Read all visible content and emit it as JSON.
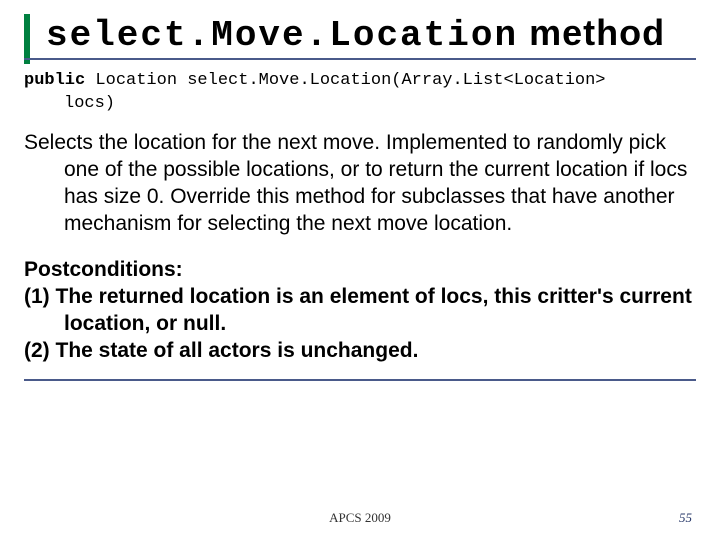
{
  "title": {
    "mono": "select.Move.Location",
    "tail": " method"
  },
  "signature": {
    "keyword": "public",
    "rest": " Location select.Move.Location(Array.List<Location>",
    "line2": "locs)"
  },
  "description": "Selects the location for the next move. Implemented to randomly pick one of the possible locations, or to return the current location if locs has size 0. Override this method for subclasses that have another mechanism for selecting the next move location.",
  "postconditions": {
    "heading": "Postconditions:",
    "item1": "(1) The returned location is an element of locs, this critter's current location, or null.",
    "item2": "(2) The state of all actors is unchanged."
  },
  "footer": {
    "center": "APCS 2009",
    "page": "55"
  },
  "colors": {
    "accent_green": "#008040",
    "rule_blue": "#4a5a8a",
    "background": "#ffffff"
  }
}
